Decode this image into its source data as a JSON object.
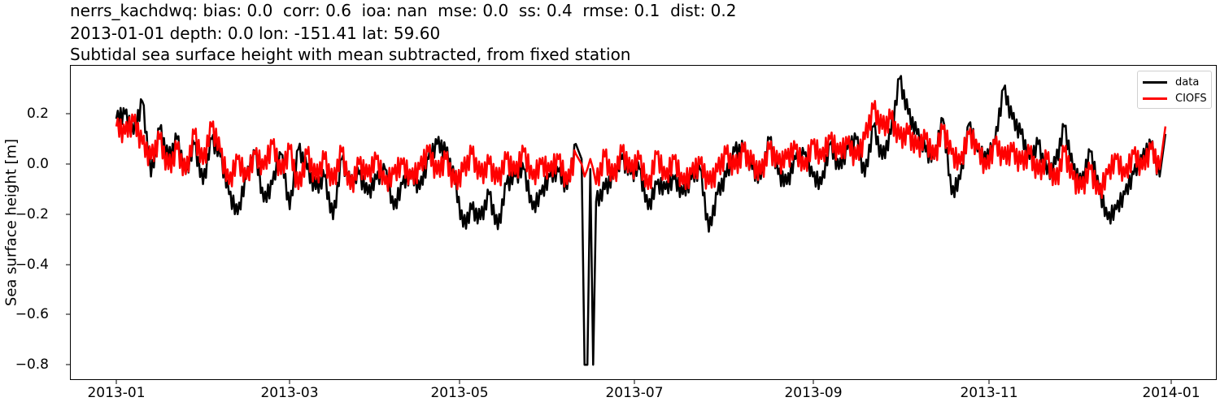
{
  "titles": {
    "line1": "nerrs_kachdwq: bias: 0.0  corr: 0.6  ioa: nan  mse: 0.0  ss: 0.4  rmse: 0.1  dist: 0.2",
    "line2": "2013-01-01 depth: 0.0 lon: -151.41 lat: 59.60",
    "line3": "Subtidal sea surface height with mean subtracted, from fixed station"
  },
  "axes": {
    "ylabel": "Sea surface height [m]",
    "yticks": [
      "0.2",
      "0.0",
      "−0.2",
      "−0.4",
      "−0.6",
      "−0.8"
    ],
    "xticks": [
      "2013-01",
      "2013-03",
      "2013-05",
      "2013-07",
      "2013-09",
      "2013-11",
      "2014-01"
    ]
  },
  "legend": {
    "items": [
      {
        "label": "data",
        "color": "#000000"
      },
      {
        "label": "CIOFS",
        "color": "#ff0000"
      }
    ]
  },
  "chart_data": {
    "type": "line",
    "title": "nerrs_kachdwq: bias: 0.0  corr: 0.6  ioa: nan  mse: 0.0  ss: 0.4  rmse: 0.1  dist: 0.2 / 2013-01-01 depth: 0.0 lon: -151.41 lat: 59.60 / Subtidal sea surface height with mean subtracted, from fixed station",
    "xlabel": "",
    "ylabel": "Sea surface height [m]",
    "xlim": [
      "2012-12-21",
      "2014-01-12"
    ],
    "ylim": [
      -0.85,
      0.39
    ],
    "yticks": [
      0.2,
      0.0,
      -0.2,
      -0.4,
      -0.6,
      -0.8
    ],
    "xticks": [
      "2013-01",
      "2013-03",
      "2013-05",
      "2013-07",
      "2013-09",
      "2013-11",
      "2014-01"
    ],
    "grid": false,
    "legend_position": "upper right",
    "x_day_of_year": [
      1,
      4,
      7,
      10,
      13,
      16,
      19,
      22,
      25,
      28,
      31,
      34,
      37,
      40,
      43,
      46,
      49,
      52,
      55,
      58,
      61,
      64,
      67,
      70,
      73,
      76,
      79,
      82,
      85,
      88,
      91,
      94,
      97,
      100,
      103,
      106,
      109,
      112,
      115,
      118,
      121,
      124,
      127,
      130,
      133,
      136,
      139,
      142,
      145,
      148,
      151,
      154,
      157,
      160,
      162,
      163,
      164,
      165,
      166,
      167,
      170,
      173,
      176,
      179,
      182,
      185,
      188,
      191,
      194,
      197,
      200,
      203,
      206,
      209,
      212,
      215,
      218,
      221,
      224,
      227,
      230,
      233,
      236,
      239,
      242,
      245,
      248,
      251,
      254,
      257,
      260,
      263,
      266,
      269,
      272,
      275,
      278,
      281,
      284,
      287,
      290,
      293,
      296,
      299,
      302,
      305,
      308,
      311,
      314,
      317,
      320,
      323,
      326,
      329,
      332,
      335,
      338,
      341,
      344,
      347,
      350,
      353,
      356,
      359,
      362,
      364
    ],
    "series": [
      {
        "name": "data",
        "color": "#000000",
        "values": [
          0.18,
          0.2,
          0.12,
          0.25,
          -0.05,
          0.14,
          0.02,
          0.1,
          -0.04,
          0.08,
          -0.08,
          0.1,
          0.03,
          -0.12,
          -0.2,
          -0.05,
          0.05,
          -0.15,
          -0.08,
          0.04,
          -0.18,
          0.06,
          -0.02,
          -0.1,
          -0.05,
          -0.22,
          0.02,
          -0.08,
          -0.04,
          -0.12,
          -0.06,
          -0.02,
          -0.18,
          -0.08,
          -0.04,
          -0.1,
          0.02,
          0.08,
          0.05,
          -0.06,
          -0.25,
          -0.18,
          -0.22,
          -0.12,
          -0.26,
          -0.08,
          -0.05,
          -0.02,
          -0.18,
          -0.12,
          -0.05,
          -0.03,
          -0.1,
          0.08,
          0.02,
          -0.8,
          -0.8,
          -0.02,
          -0.8,
          -0.15,
          -0.1,
          -0.05,
          0.02,
          -0.04,
          -0.02,
          -0.18,
          -0.08,
          -0.1,
          -0.06,
          -0.12,
          -0.06,
          -0.02,
          -0.27,
          -0.12,
          -0.05,
          0.05,
          0.06,
          -0.02,
          -0.06,
          0.1,
          -0.04,
          -0.08,
          0.02,
          0.04,
          -0.05,
          -0.08,
          0.08,
          -0.02,
          0.06,
          0.1,
          -0.05,
          0.15,
          0.02,
          0.12,
          0.34,
          0.2,
          0.12,
          0.05,
          0.02,
          0.18,
          -0.12,
          -0.06,
          0.16,
          0.05,
          0.02,
          0.08,
          0.3,
          0.18,
          0.12,
          0.02,
          0.08,
          -0.04,
          0.0,
          0.15,
          -0.02,
          -0.08,
          0.05,
          -0.1,
          -0.22,
          -0.18,
          -0.12,
          -0.04,
          0.02,
          0.08,
          -0.05,
          0.12
        ]
      },
      {
        "name": "CIOFS",
        "color": "#ff0000",
        "values": [
          0.15,
          0.12,
          0.17,
          0.08,
          0.02,
          0.1,
          -0.02,
          0.06,
          -0.04,
          0.12,
          0.0,
          0.15,
          0.05,
          -0.08,
          0.02,
          -0.06,
          0.04,
          -0.02,
          0.08,
          -0.04,
          0.06,
          -0.1,
          0.04,
          -0.06,
          0.02,
          -0.08,
          0.05,
          -0.1,
          0.0,
          -0.05,
          0.02,
          -0.08,
          -0.04,
          0.0,
          -0.06,
          -0.02,
          0.05,
          -0.04,
          0.02,
          -0.08,
          -0.03,
          0.04,
          -0.05,
          0.0,
          -0.07,
          0.02,
          -0.04,
          0.05,
          -0.06,
          0.0,
          -0.03,
          0.02,
          -0.08,
          0.04,
          0.0,
          -0.05,
          -0.02,
          0.02,
          -0.02,
          -0.08,
          0.03,
          -0.06,
          0.05,
          -0.03,
          0.02,
          -0.1,
          0.04,
          -0.06,
          0.02,
          -0.08,
          -0.04,
          0.0,
          -0.08,
          -0.03,
          0.04,
          -0.02,
          0.05,
          0.0,
          -0.04,
          0.06,
          0.0,
          0.02,
          0.06,
          -0.02,
          0.08,
          0.02,
          0.1,
          0.04,
          0.08,
          0.02,
          0.1,
          0.22,
          0.14,
          0.18,
          0.1,
          0.12,
          0.06,
          0.1,
          0.02,
          0.14,
          0.04,
          0.0,
          0.12,
          0.06,
          -0.02,
          0.08,
          0.02,
          0.05,
          0.0,
          0.04,
          -0.04,
          0.02,
          -0.08,
          0.05,
          -0.06,
          -0.1,
          -0.02,
          -0.12,
          -0.04,
          0.02,
          -0.05,
          0.04,
          -0.02,
          0.06,
          -0.02,
          0.15
        ]
      }
    ]
  }
}
